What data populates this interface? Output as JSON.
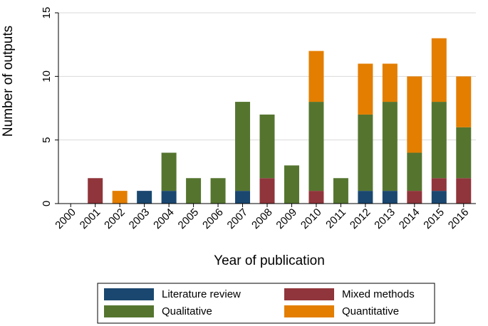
{
  "chart_data": {
    "type": "bar",
    "stacked": true,
    "title": "",
    "xlabel": "Year of publication",
    "ylabel": "Number of outputs",
    "ylim": [
      0,
      15
    ],
    "yticks": [
      0,
      5,
      10,
      15
    ],
    "grid": "horizontal",
    "legend_position": "bottom",
    "categories": [
      "2000",
      "2001",
      "2002",
      "2003",
      "2004",
      "2005",
      "2006",
      "2007",
      "2008",
      "2009",
      "2010",
      "2011",
      "2012",
      "2013",
      "2014",
      "2015",
      "2016"
    ],
    "series": [
      {
        "name": "Literature review",
        "color": "#1a476f",
        "values": [
          0,
          0,
          0,
          1,
          1,
          0,
          0,
          1,
          0,
          0,
          0,
          0,
          1,
          1,
          0,
          1,
          0
        ]
      },
      {
        "name": "Mixed methods",
        "color": "#90353b",
        "values": [
          0,
          2,
          0,
          0,
          0,
          0,
          0,
          0,
          2,
          0,
          1,
          0,
          0,
          0,
          1,
          1,
          2
        ]
      },
      {
        "name": "Qualitative",
        "color": "#55752f",
        "values": [
          0,
          0,
          0,
          0,
          3,
          2,
          2,
          7,
          5,
          3,
          7,
          2,
          6,
          7,
          3,
          6,
          4
        ]
      },
      {
        "name": "Quantitative",
        "color": "#e37e00",
        "values": [
          0,
          0,
          1,
          0,
          0,
          0,
          0,
          0,
          0,
          0,
          4,
          0,
          4,
          3,
          6,
          5,
          4
        ]
      }
    ]
  }
}
